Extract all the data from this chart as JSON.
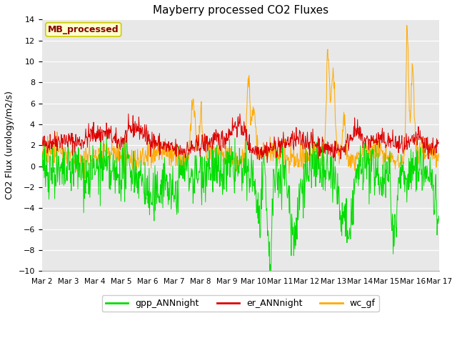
{
  "title": "Mayberry processed CO2 Fluxes",
  "ylabel": "CO2 Flux (urology/m2/s)",
  "ylim": [
    -10,
    14
  ],
  "yticks": [
    -10,
    -8,
    -6,
    -4,
    -2,
    0,
    2,
    4,
    6,
    8,
    10,
    12,
    14
  ],
  "x_tick_labels": [
    "Mar 2",
    "Mar 3",
    "Mar 4",
    "Mar 5",
    "Mar 6",
    "Mar 7",
    "Mar 8",
    "Mar 9",
    "Mar 10",
    "Mar 11",
    "Mar 12",
    "Mar 13",
    "Mar 14",
    "Mar 15",
    "Mar 16",
    "Mar 17"
  ],
  "color_gpp": "#00dd00",
  "color_er": "#dd0000",
  "color_wc": "#ffaa00",
  "legend_labels": [
    "gpp_ANNnight",
    "er_ANNnight",
    "wc_gf"
  ],
  "annotation_text": "MB_processed",
  "annotation_color": "#880000",
  "annotation_bg": "#ffffcc",
  "annotation_border": "#cccc00",
  "bg_color": "#e8e8e8",
  "fig_bg": "#ffffff",
  "n_points": 960,
  "seed": 42
}
